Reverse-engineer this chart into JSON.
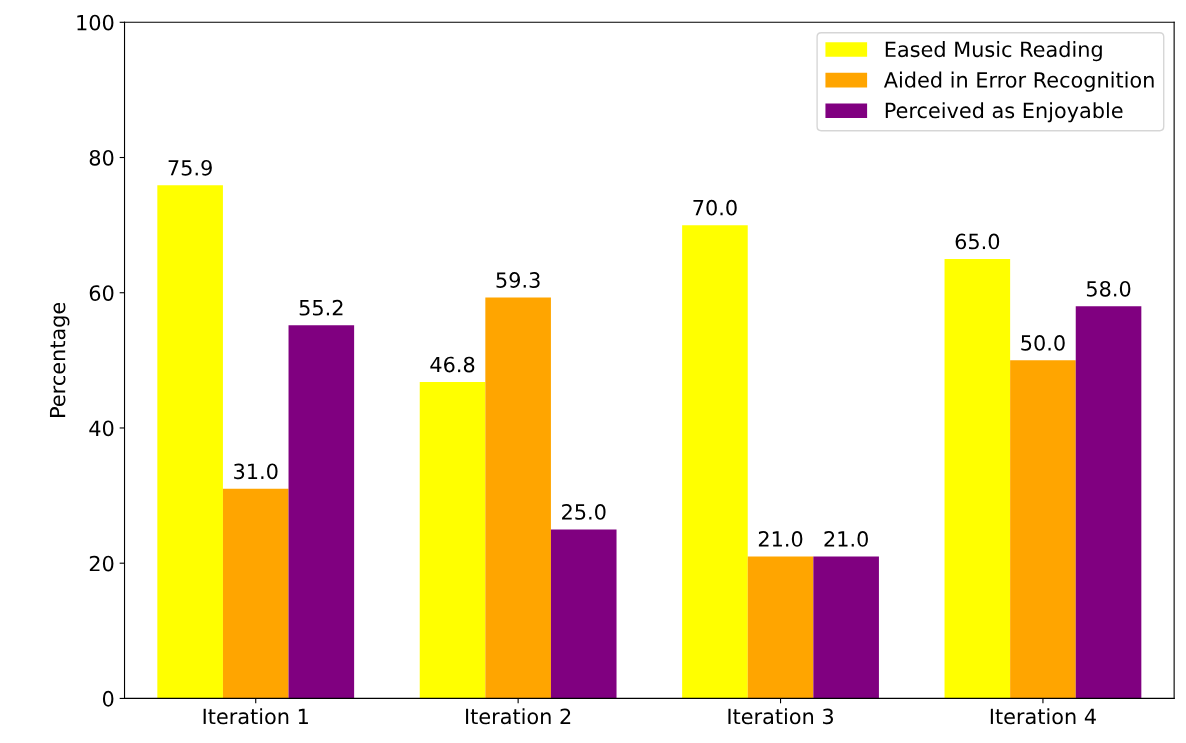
{
  "chart_data": {
    "type": "bar",
    "ylabel": "Percentage",
    "categories": [
      "Iteration 1",
      "Iteration 2",
      "Iteration 3",
      "Iteration 4"
    ],
    "series": [
      {
        "name": "Eased Music Reading",
        "color": "#ffff00",
        "values": [
          75.9,
          46.8,
          70,
          65
        ],
        "value_labels": [
          "75.9",
          "46.8",
          "70.0",
          "65.0"
        ]
      },
      {
        "name": "Aided in Error Recognition",
        "color": "#ffa500",
        "values": [
          31,
          59.3,
          21,
          50
        ],
        "value_labels": [
          "31.0",
          "59.3",
          "21.0",
          "50.0"
        ]
      },
      {
        "name": "Perceived as Enjoyable",
        "color": "#800080",
        "values": [
          55.2,
          25,
          21,
          58
        ],
        "value_labels": [
          "55.2",
          "25.0",
          "21.0",
          "58.0"
        ]
      }
    ],
    "ylim": [
      0,
      100
    ],
    "yticks": [
      0,
      20,
      40,
      60,
      80,
      100
    ],
    "legend": "top right",
    "grid": false
  }
}
